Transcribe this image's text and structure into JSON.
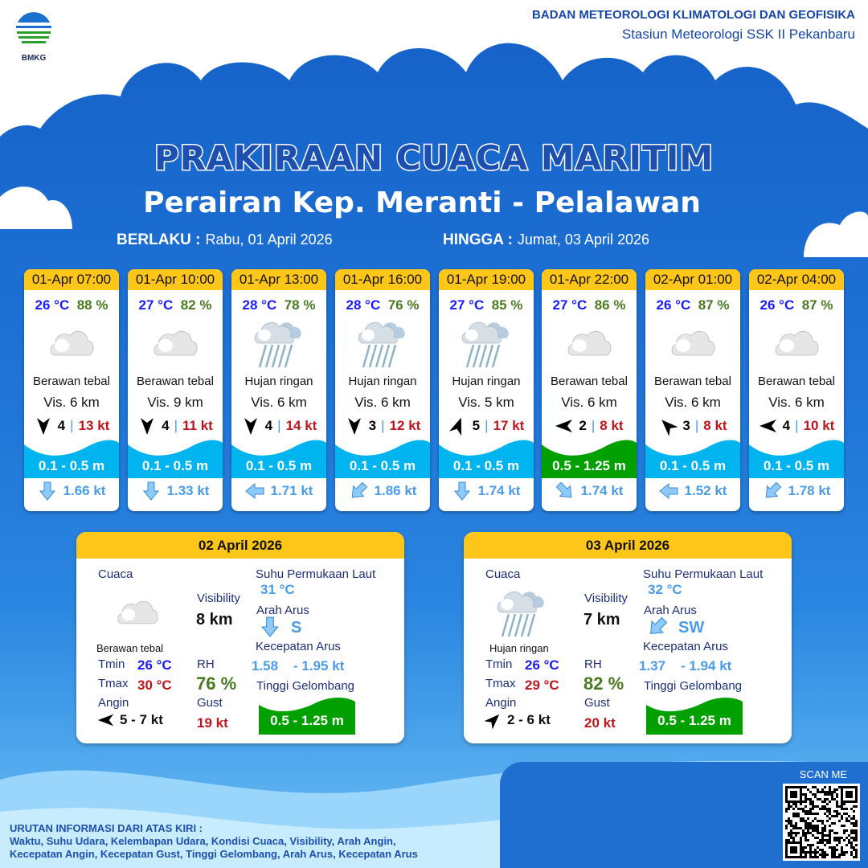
{
  "header": {
    "logo_text": "BMKG",
    "org_line1": "BADAN METEOROLOGI KLIMATOLOGI DAN GEOFISIKA",
    "org_line2": "Stasiun Meteorologi SSK II Pekanbaru"
  },
  "title": "PRAKIRAAN CUACA MARITIM",
  "subtitle": "Perairan Kep. Meranti - Pelalawan",
  "validity": {
    "from_label": "BERLAKU :",
    "from": "Rabu, 01 April 2026",
    "to_label": "HINGGA :",
    "to": "Jumat, 03 April 2026"
  },
  "colors": {
    "card_header": "#ffc61a",
    "wave_low": "#00b4f0",
    "wave_mid": "#00a000",
    "temp": "#1a1aff",
    "rh": "#4a7a1e",
    "gust": "#c0141c",
    "current": "#4a9be8"
  },
  "forecasts": [
    {
      "time": "01-Apr 07:00",
      "temp": "26 °C",
      "rh": "88 %",
      "icon": "cloud-icon",
      "cond": "Berawan tebal",
      "vis": "Vis. 6 km",
      "wind_dir_deg": 180,
      "wind": "4",
      "gust": "13 kt",
      "wave": "0.1 - 0.5 m",
      "wave_color": "#00b4f0",
      "cur_dir_deg": 180,
      "cur": "1.66 kt"
    },
    {
      "time": "01-Apr 10:00",
      "temp": "27 °C",
      "rh": "82 %",
      "icon": "cloud-icon",
      "cond": "Berawan tebal",
      "vis": "Vis. 9 km",
      "wind_dir_deg": 180,
      "wind": "4",
      "gust": "11 kt",
      "wave": "0.1 - 0.5 m",
      "wave_color": "#00b4f0",
      "cur_dir_deg": 180,
      "cur": "1.33 kt"
    },
    {
      "time": "01-Apr 13:00",
      "temp": "28 °C",
      "rh": "78 %",
      "icon": "rain-icon",
      "cond": "Hujan ringan",
      "vis": "Vis. 6 km",
      "wind_dir_deg": 180,
      "wind": "4",
      "gust": "14 kt",
      "wave": "0.1 - 0.5 m",
      "wave_color": "#00b4f0",
      "cur_dir_deg": 270,
      "cur": "1.71 kt"
    },
    {
      "time": "01-Apr 16:00",
      "temp": "28 °C",
      "rh": "76 %",
      "icon": "rain-icon",
      "cond": "Hujan ringan",
      "vis": "Vis. 6 km",
      "wind_dir_deg": 180,
      "wind": "3",
      "gust": "12 kt",
      "wave": "0.1 - 0.5 m",
      "wave_color": "#00b4f0",
      "cur_dir_deg": 225,
      "cur": "1.86 kt"
    },
    {
      "time": "01-Apr 19:00",
      "temp": "27 °C",
      "rh": "85 %",
      "icon": "rain-icon",
      "cond": "Hujan ringan",
      "vis": "Vis. 5 km",
      "wind_dir_deg": 20,
      "wind": "5",
      "gust": "17 kt",
      "wave": "0.1 - 0.5 m",
      "wave_color": "#00b4f0",
      "cur_dir_deg": 180,
      "cur": "1.74 kt"
    },
    {
      "time": "01-Apr 22:00",
      "temp": "27 °C",
      "rh": "86 %",
      "icon": "cloud-icon",
      "cond": "Berawan tebal",
      "vis": "Vis. 6 km",
      "wind_dir_deg": 270,
      "wind": "2",
      "gust": "8 kt",
      "wave": "0.5 - 1.25 m",
      "wave_color": "#00a000",
      "cur_dir_deg": 135,
      "cur": "1.74 kt"
    },
    {
      "time": "02-Apr 01:00",
      "temp": "26 °C",
      "rh": "87 %",
      "icon": "cloud-icon",
      "cond": "Berawan tebal",
      "vis": "Vis. 6 km",
      "wind_dir_deg": 315,
      "wind": "3",
      "gust": "8 kt",
      "wave": "0.1 - 0.5 m",
      "wave_color": "#00b4f0",
      "cur_dir_deg": 270,
      "cur": "1.52 kt"
    },
    {
      "time": "02-Apr 04:00",
      "temp": "26 °C",
      "rh": "87 %",
      "icon": "cloud-icon",
      "cond": "Berawan tebal",
      "vis": "Vis. 6 km",
      "wind_dir_deg": 270,
      "wind": "4",
      "gust": "10 kt",
      "wave": "0.1 - 0.5 m",
      "wave_color": "#00b4f0",
      "cur_dir_deg": 225,
      "cur": "1.78 kt"
    }
  ],
  "daily": [
    {
      "date": "02 April 2026",
      "cuaca_label": "Cuaca",
      "icon": "cloud-icon",
      "cond": "Berawan tebal",
      "tmin_label": "Tmin",
      "tmin": "26 °C",
      "tmax_label": "Tmax",
      "tmax": "30 °C",
      "angin_label": "Angin",
      "wind_dir_deg": 270,
      "wind": "5  - 7 kt",
      "vis_label": "Visibility",
      "vis": "8 km",
      "rh_label": "RH",
      "rh": "76 %",
      "gust_label": "Gust",
      "gust": "19 kt",
      "sst_label": "Suhu Permukaan Laut",
      "sst": "31 °C",
      "cur_dir_label": "Arah Arus",
      "cur_dir_deg": 180,
      "cur_dir": "S",
      "cur_speed_label": "Kecepatan Arus",
      "cur_min": "1.58",
      "cur_max": "- 1.95 kt",
      "wave_label": "Tinggi Gelombang",
      "wave": "0.5 - 1.25 m"
    },
    {
      "date": "03 April 2026",
      "cuaca_label": "Cuaca",
      "icon": "rain-icon",
      "cond": "Hujan ringan",
      "tmin_label": "Tmin",
      "tmin": "26 °C",
      "tmax_label": "Tmax",
      "tmax": "29 °C",
      "angin_label": "Angin",
      "wind_dir_deg": 45,
      "wind": "2  - 6 kt",
      "vis_label": "Visibility",
      "vis": "7 km",
      "rh_label": "RH",
      "rh": "82 %",
      "gust_label": "Gust",
      "gust": "20 kt",
      "sst_label": "Suhu Permukaan Laut",
      "sst": "32 °C",
      "cur_dir_label": "Arah Arus",
      "cur_dir_deg": 225,
      "cur_dir": "SW",
      "cur_speed_label": "Kecepatan Arus",
      "cur_min": "1.37",
      "cur_max": "- 1.94 kt",
      "wave_label": "Tinggi Gelombang",
      "wave": "0.5 - 1.25 m"
    }
  ],
  "footer": {
    "note_title": "URUTAN INFORMASI DARI ATAS KIRI :",
    "note_line1": "Waktu, Suhu Udara, Kelembapan Udara, Kondisi Cuaca, Visibility, Arah Angin,",
    "note_line2": "Kecepatan Angin, Kecepatan Gust, Tinggi Gelombang, Arah Arus, Kecepatan Arus",
    "scan_label": "SCAN ME"
  }
}
